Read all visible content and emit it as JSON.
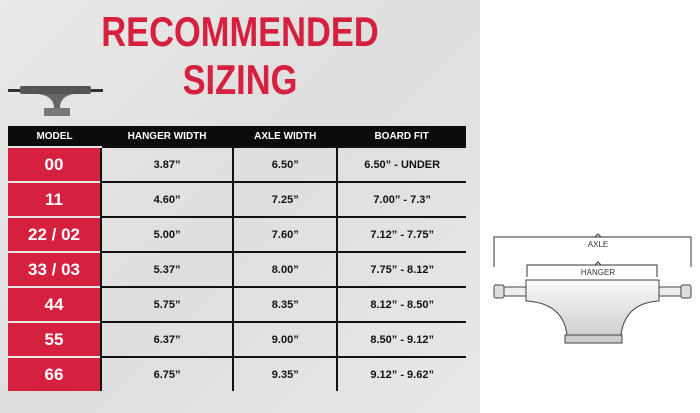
{
  "title": "RECOMMENDED SIZING",
  "table": {
    "headers": [
      "MODEL",
      "HANGER WIDTH",
      "AXLE WIDTH",
      "BOARD FIT"
    ],
    "rows": [
      [
        "00",
        "3.87”",
        "6.50”",
        "6.50” - UNDER"
      ],
      [
        "11",
        "4.60”",
        "7.25”",
        "7.00” - 7.3”"
      ],
      [
        "22 / 02",
        "5.00”",
        "7.60”",
        "7.12” - 7.75”"
      ],
      [
        "33 / 03",
        "5.37”",
        "8.00”",
        "7.75” - 8.12”"
      ],
      [
        "44",
        "5.75”",
        "8.35”",
        "8.12” - 8.50”"
      ],
      [
        "55",
        "6.37”",
        "9.00”",
        "8.50” - 9.12”"
      ],
      [
        "66",
        "6.75”",
        "9.35”",
        "9.12” - 9.62”"
      ]
    ]
  },
  "diagram": {
    "axle_label": "AXLE",
    "hanger_label": "HANGER"
  },
  "colors": {
    "accent": "#d5203f",
    "header": "#0c0c0c"
  }
}
